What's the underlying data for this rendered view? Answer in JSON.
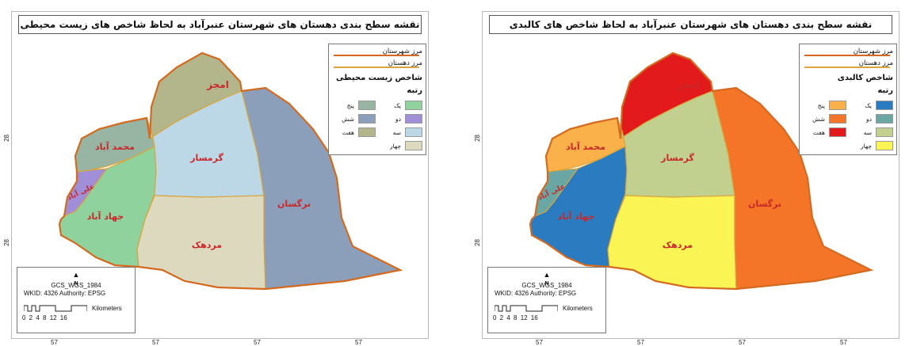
{
  "maps": [
    {
      "id": "left",
      "title": "نقشه سطح بندی دهستان های شهرستان عنبرآباد به لحاظ شاخص های زیست محیطی",
      "regions": {
        "amjaz": {
          "label": "امجز",
          "color": "#b3b58b",
          "rank": "هفت"
        },
        "mohammad": {
          "label": "محمد آباد",
          "color": "#98b4a2",
          "rank": "پنج"
        },
        "aliabad": {
          "label": "علی آباد",
          "color": "#a08fd6",
          "rank": "دو"
        },
        "jahad": {
          "label": "جهاد آباد",
          "color": "#8fd29e",
          "rank": "یک"
        },
        "garmsar": {
          "label": "گرمسار",
          "color": "#bcd8e6",
          "rank": "سه"
        },
        "mardahak": {
          "label": "مردهک",
          "color": "#ddd9bf",
          "rank": "چهار"
        },
        "nargesan": {
          "label": "نرگسان",
          "color": "#8c9fba",
          "rank": "شش"
        }
      },
      "legend": {
        "county_border": "مرز شهرستان",
        "district_border": "مرز دهستان",
        "heading": "شاخص زیست محیطی",
        "subheading": "رتبه",
        "items_right": [
          {
            "label": "یک",
            "color": "#8fd29e"
          },
          {
            "label": "دو",
            "color": "#a08fd6"
          },
          {
            "label": "سه",
            "color": "#bcd8e6"
          },
          {
            "label": "چهار",
            "color": "#ddd9bf"
          }
        ],
        "items_left": [
          {
            "label": "پنج",
            "color": "#98b4a2"
          },
          {
            "label": "شش",
            "color": "#8c9fba"
          },
          {
            "label": "هفت",
            "color": "#b3b58b"
          }
        ]
      }
    },
    {
      "id": "right",
      "title": "نقشه سطح بندی دهستان های شهرستان عنبرآباد به لحاظ شاخص های کالبدی",
      "regions": {
        "amjaz": {
          "label": "امجز",
          "color": "#e31a1c",
          "rank": "هفت"
        },
        "mohammad": {
          "label": "محمد آباد",
          "color": "#fbb14a",
          "rank": "پنج"
        },
        "aliabad": {
          "label": "علی آباد",
          "color": "#6aa6a3",
          "rank": "دو"
        },
        "jahad": {
          "label": "جهاد آباد",
          "color": "#2b7bc0",
          "rank": "یک"
        },
        "garmsar": {
          "label": "گرمسار",
          "color": "#c1cf8f",
          "rank": "سه"
        },
        "mardahak": {
          "label": "مردهک",
          "color": "#fbf455",
          "rank": "چهار"
        },
        "nargesan": {
          "label": "نرگسان",
          "color": "#f57528",
          "rank": "شش"
        }
      },
      "legend": {
        "county_border": "مرز شهرستان",
        "district_border": "مرز دهستان",
        "heading": "شاخص کالبدی",
        "subheading": "رتبه",
        "items_right": [
          {
            "label": "یک",
            "color": "#2b7bc0"
          },
          {
            "label": "دو",
            "color": "#6aa6a3"
          },
          {
            "label": "سه",
            "color": "#c1cf8f"
          },
          {
            "label": "چهار",
            "color": "#fbf455"
          }
        ],
        "items_left": [
          {
            "label": "پنج",
            "color": "#fbb14a"
          },
          {
            "label": "شش",
            "color": "#f57528"
          },
          {
            "label": "هفت",
            "color": "#e31a1c"
          }
        ]
      }
    }
  ],
  "info": {
    "north": "N",
    "gcs": "GCS_WGS_1984",
    "wkid": "WKID: 4326 Authority: EPSG",
    "scale_unit": "Kilometers",
    "scale_ticks": "0 2 4   8   12   16"
  },
  "coords": {
    "lat": "28",
    "lon": "57"
  },
  "colors": {
    "county_border": "#d46a1f",
    "district_border": "#d9a53c"
  }
}
